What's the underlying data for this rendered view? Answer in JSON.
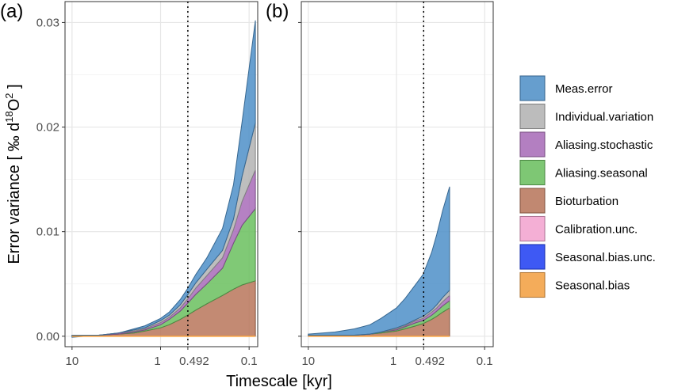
{
  "figure": {
    "xlabel": "Timescale [kyr]",
    "ylabel_prefix": "Error variance [ ‰ d",
    "ylabel_sup1": "18",
    "ylabel_mid": "O",
    "ylabel_sup2": "2",
    "ylabel_suffix": " ]"
  },
  "chart_data": {
    "type": "area",
    "stacked": true,
    "x_scale": "log (reversed, timescale decreasing to the right)",
    "xlim": [
      12,
      0.08
    ],
    "ylim": [
      -0.001,
      0.032
    ],
    "x_ticks": [
      {
        "value": 10,
        "label": "10"
      },
      {
        "value": 1,
        "label": "1"
      },
      {
        "value": 0.492,
        "label": "0.492"
      },
      {
        "value": 0.1,
        "label": "0.1"
      }
    ],
    "y_ticks": [
      {
        "value": 0,
        "label": "0.00"
      },
      {
        "value": 0.01,
        "label": "0.01"
      },
      {
        "value": 0.02,
        "label": "0.02"
      },
      {
        "value": 0.03,
        "label": "0.03"
      }
    ],
    "vline": {
      "value": 0.492,
      "style": "dotted"
    },
    "grid": true,
    "legend_position": "right",
    "legend": [
      {
        "name": "Meas.error",
        "color": "#4d8fc8"
      },
      {
        "name": "Individual.variation",
        "color": "#b3b3b3"
      },
      {
        "name": "Aliasing.stochastic",
        "color": "#a86bb8"
      },
      {
        "name": "Aliasing.seasonal",
        "color": "#6abf5e"
      },
      {
        "name": "Bioturbation",
        "color": "#b8765a"
      },
      {
        "name": "Calibration.unc.",
        "color": "#f5a3d0"
      },
      {
        "name": "Seasonal.bias.unc.",
        "color": "#1f3ef5"
      },
      {
        "name": "Seasonal.bias",
        "color": "#f5a040"
      }
    ],
    "panels": [
      {
        "tag": "(a)",
        "x": [
          10,
          5,
          3,
          2,
          1.5,
          1,
          0.8,
          0.6,
          0.5,
          0.4,
          0.3,
          0.2,
          0.15,
          0.12,
          0.085
        ],
        "series": [
          {
            "name": "Seasonal.bias",
            "values": [
              0,
              0,
              0,
              0,
              0,
              0,
              0,
              0,
              0,
              0,
              0,
              0,
              0,
              0,
              0
            ]
          },
          {
            "name": "Seasonal.bias.unc.",
            "values": [
              0,
              0,
              0,
              0,
              0,
              0,
              0,
              0,
              0,
              0,
              0,
              0,
              0,
              0,
              0
            ]
          },
          {
            "name": "Calibration.unc.",
            "values": [
              0,
              0,
              0,
              0,
              0,
              0,
              0,
              0,
              0,
              0,
              0,
              0,
              0,
              0,
              0
            ]
          },
          {
            "name": "Bioturbation",
            "values": [
              0.0001,
              0.0001,
              0.0002,
              0.0003,
              0.0005,
              0.0008,
              0.0011,
              0.0016,
              0.002,
              0.0025,
              0.0031,
              0.0039,
              0.0045,
              0.0049,
              0.0053
            ]
          },
          {
            "name": "Aliasing.seasonal",
            "values": [
              0,
              0,
              0,
              0.0001,
              0.0001,
              0.0003,
              0.0005,
              0.0008,
              0.0011,
              0.0015,
              0.0019,
              0.0026,
              0.0044,
              0.0057,
              0.0069
            ]
          },
          {
            "name": "Aliasing.stochastic",
            "values": [
              0,
              0,
              0.0001,
              0.0001,
              0.0001,
              0.0002,
              0.0002,
              0.0003,
              0.0004,
              0.0006,
              0.0008,
              0.001,
              0.0013,
              0.0023,
              0.0037
            ]
          },
          {
            "name": "Individual.variation",
            "values": [
              0,
              0,
              0,
              0.0001,
              0.0001,
              0.0002,
              0.0002,
              0.0003,
              0.0004,
              0.0005,
              0.0006,
              0.0007,
              0.001,
              0.0024,
              0.0045
            ]
          },
          {
            "name": "Meas.error",
            "values": [
              -0.0002,
              0,
              0,
              0.0001,
              0.0002,
              0.0002,
              0.0003,
              0.0005,
              0.0006,
              0.0008,
              0.0011,
              0.0021,
              0.0033,
              0.0052,
              0.0098
            ]
          }
        ]
      },
      {
        "tag": "(b)",
        "x": [
          10,
          5,
          3,
          2,
          1.5,
          1,
          0.8,
          0.6,
          0.5,
          0.4,
          0.35,
          0.3,
          0.25
        ],
        "series": [
          {
            "name": "Seasonal.bias",
            "values": [
              0,
              0,
              0,
              0,
              0,
              0,
              0,
              0,
              0,
              0,
              0,
              0,
              0
            ]
          },
          {
            "name": "Seasonal.bias.unc.",
            "values": [
              0,
              0,
              0,
              0,
              0,
              0,
              0,
              0,
              0,
              0,
              0,
              0,
              0
            ]
          },
          {
            "name": "Calibration.unc.",
            "values": [
              0,
              0,
              0,
              0,
              0,
              0,
              0,
              0,
              0,
              0,
              0,
              0,
              0
            ]
          },
          {
            "name": "Bioturbation",
            "values": [
              0.0001,
              0.0001,
              0.0001,
              0.0002,
              0.0003,
              0.0005,
              0.0007,
              0.001,
              0.0012,
              0.0016,
              0.0019,
              0.0023,
              0.0027
            ]
          },
          {
            "name": "Aliasing.seasonal",
            "values": [
              0,
              0,
              0,
              0,
              0.0001,
              0.0001,
              0.0002,
              0.0003,
              0.0003,
              0.0004,
              0.0005,
              0.0006,
              0.0007
            ]
          },
          {
            "name": "Aliasing.stochastic",
            "values": [
              0,
              0,
              0,
              0,
              0,
              0.0001,
              0.0001,
              0.0002,
              0.0002,
              0.0003,
              0.0003,
              0.0004,
              0.0005
            ]
          },
          {
            "name": "Individual.variation",
            "values": [
              0,
              0,
              0,
              0,
              0,
              0.0001,
              0.0001,
              0.0001,
              0.0002,
              0.0002,
              0.0003,
              0.0004,
              0.0005
            ]
          },
          {
            "name": "Meas.error",
            "values": [
              0.0001,
              0.0003,
              0.0006,
              0.0009,
              0.0013,
              0.0019,
              0.0025,
              0.0034,
              0.004,
              0.0055,
              0.0067,
              0.0083,
              0.0099
            ]
          }
        ]
      }
    ]
  }
}
